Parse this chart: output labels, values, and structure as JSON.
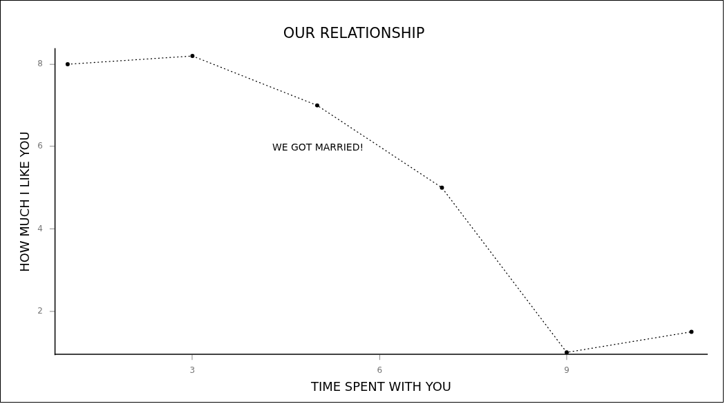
{
  "chart_data": {
    "type": "line",
    "title": "OUR RELATIONSHIP",
    "xlabel": "TIME SPENT WITH YOU",
    "ylabel": "HOW MUCH I LIKE YOU",
    "x": [
      1,
      3,
      5,
      7,
      9,
      11
    ],
    "series": [
      {
        "color": "#000000",
        "values": [
          8,
          8.2,
          7,
          5,
          1,
          1.5
        ]
      }
    ],
    "xlim": [
      0.8,
      11.25
    ],
    "ylim": [
      0.95,
      8.37
    ],
    "xticks": [
      3,
      6,
      9
    ],
    "yticks": [
      2,
      4,
      6,
      8
    ],
    "grid": false,
    "legend": false,
    "marker": "circle",
    "line_style": "dotted",
    "annotations": [
      "WE GOT MARRIED!"
    ]
  }
}
